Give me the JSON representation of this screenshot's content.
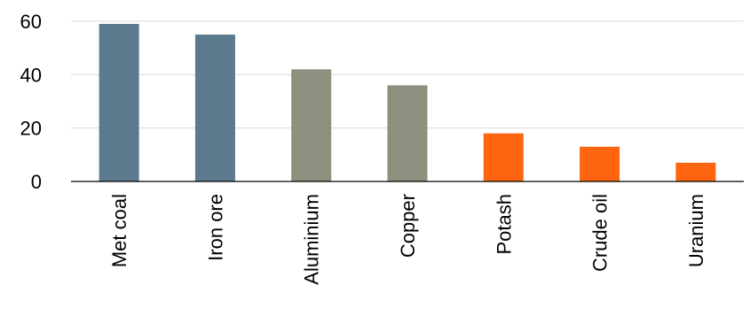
{
  "chart_data": {
    "type": "bar",
    "title": "",
    "xlabel": "",
    "ylabel": "",
    "categories": [
      "Met coal",
      "Iron ore",
      "Aluminium",
      "Copper",
      "Potash",
      "Crude oil",
      "Uranium"
    ],
    "values": [
      59,
      55,
      42,
      36,
      18,
      13,
      7
    ],
    "bar_colors": [
      "#5b7a8e",
      "#5b7a8e",
      "#8f8f7f",
      "#8f8f7f",
      "#ff6510",
      "#ff6510",
      "#ff6510"
    ],
    "ylim": [
      0,
      60
    ],
    "yticks": [
      0,
      20,
      40,
      60
    ],
    "grid": true,
    "legend": "none"
  }
}
